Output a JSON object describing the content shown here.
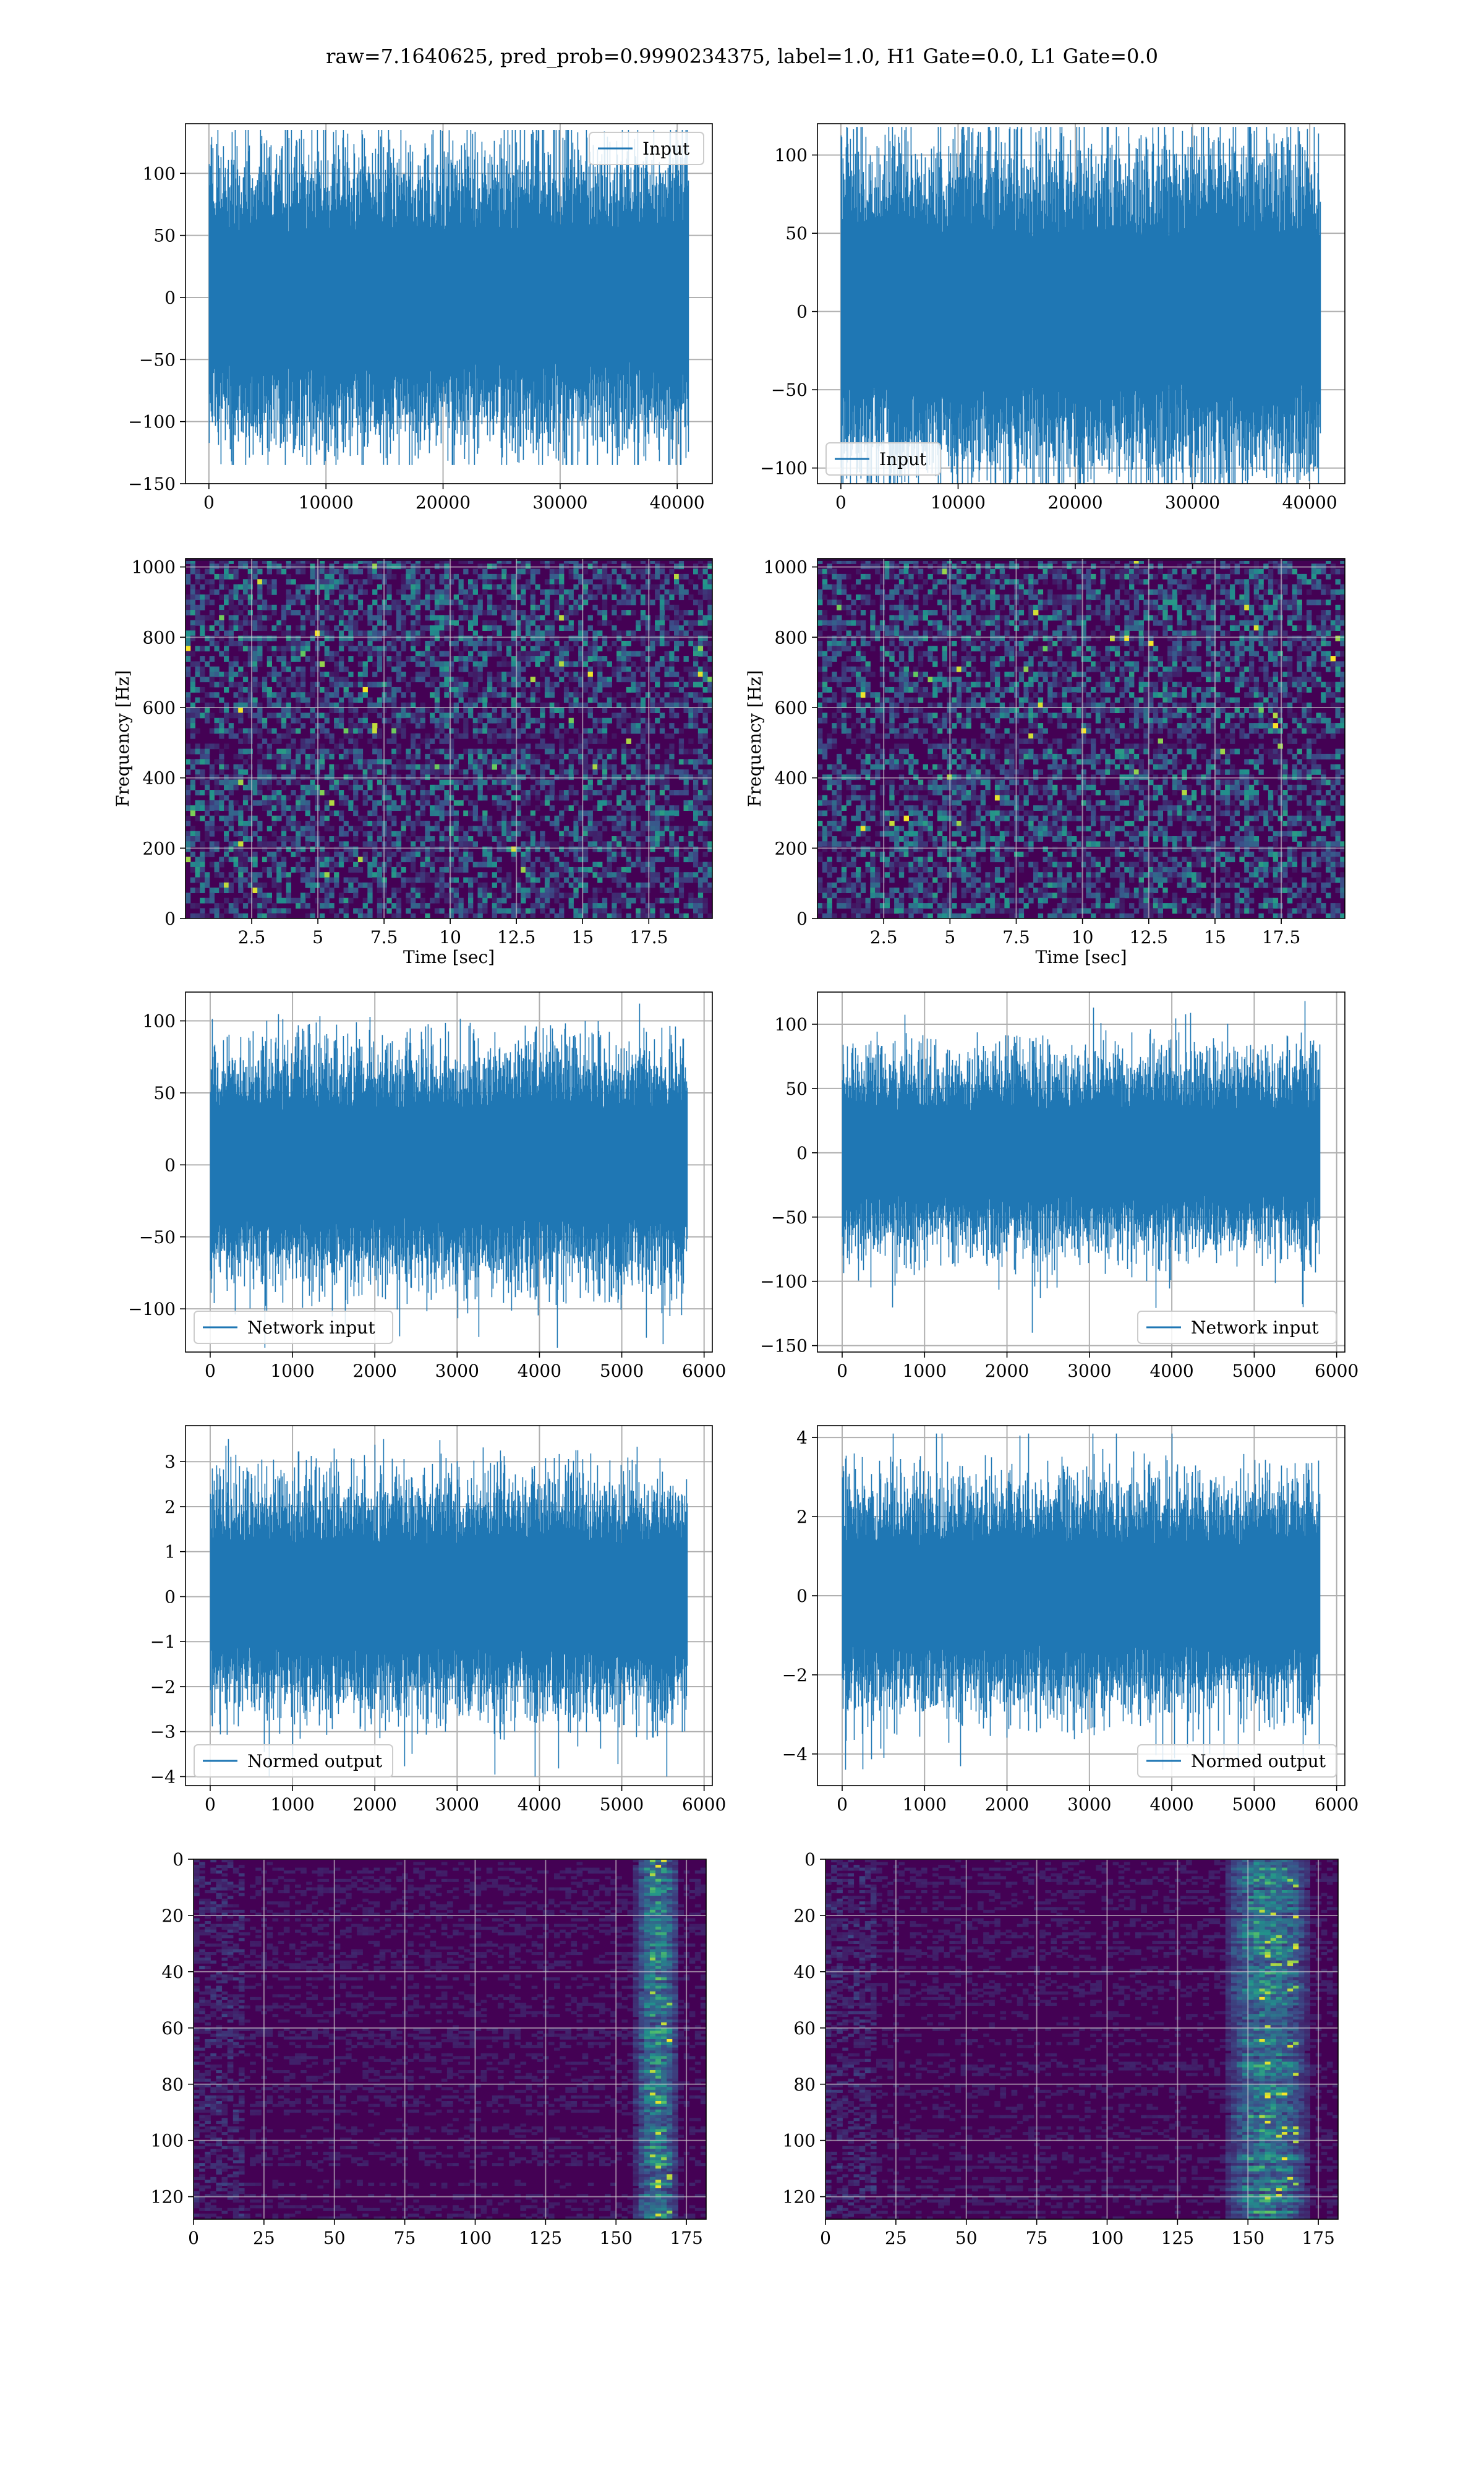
{
  "figure": {
    "title": "raw=7.1640625, pred_prob=0.9990234375, label=1.0, H1 Gate=0.0, L1 Gate=0.0"
  },
  "colors": {
    "line": "#1f77b4",
    "grid": "#b0b0b0",
    "spec_low": "#440154",
    "spec_high": "#fde725"
  },
  "chart_data": [
    {
      "id": "input-h1",
      "type": "line",
      "row": 0,
      "col": 0,
      "series": [
        {
          "name": "Input"
        }
      ],
      "legend": "upper right",
      "xlim": [
        -2000,
        43000
      ],
      "ylim": [
        -150,
        140
      ],
      "xticks": [
        0,
        10000,
        20000,
        30000,
        40000
      ],
      "yticks": [
        -150,
        -100,
        -50,
        0,
        50,
        100
      ],
      "signal": {
        "length": 40960,
        "sigma": 28,
        "max": 135,
        "min": -135
      },
      "xlabel": "",
      "ylabel": ""
    },
    {
      "id": "input-l1",
      "type": "line",
      "row": 0,
      "col": 1,
      "series": [
        {
          "name": "Input"
        }
      ],
      "legend": "lower left",
      "xlim": [
        -2000,
        43000
      ],
      "ylim": [
        -110,
        120
      ],
      "xticks": [
        0,
        10000,
        20000,
        30000,
        40000
      ],
      "yticks": [
        -100,
        -50,
        0,
        50,
        100
      ],
      "signal": {
        "length": 40960,
        "sigma": 25,
        "max": 118,
        "min": -122
      },
      "xlabel": "",
      "ylabel": ""
    },
    {
      "id": "spectrogram-h1",
      "type": "heatmap",
      "row": 1,
      "col": 0,
      "xlim": [
        0,
        19.9
      ],
      "ylim": [
        0,
        1024
      ],
      "xticks": [
        2.5,
        5.0,
        7.5,
        10.0,
        12.5,
        15.0,
        17.5
      ],
      "yticks": [
        0,
        200,
        400,
        600,
        800,
        1000
      ],
      "xlabel": "Time [sec]",
      "ylabel": "Frequency [Hz]"
    },
    {
      "id": "spectrogram-l1",
      "type": "heatmap",
      "row": 1,
      "col": 1,
      "xlim": [
        0,
        19.9
      ],
      "ylim": [
        0,
        1024
      ],
      "xticks": [
        2.5,
        5.0,
        7.5,
        10.0,
        12.5,
        15.0,
        17.5
      ],
      "yticks": [
        0,
        200,
        400,
        600,
        800,
        1000
      ],
      "xlabel": "Time [sec]",
      "ylabel": "Frequency [Hz]"
    },
    {
      "id": "network-input-h1",
      "type": "line",
      "row": 2,
      "col": 0,
      "series": [
        {
          "name": "Network input"
        }
      ],
      "legend": "lower left",
      "xlim": [
        -300,
        6100
      ],
      "ylim": [
        -130,
        120
      ],
      "xticks": [
        0,
        1000,
        2000,
        3000,
        4000,
        5000,
        6000
      ],
      "yticks": [
        -100,
        -50,
        0,
        50,
        100
      ],
      "signal": {
        "length": 5800,
        "sigma": 27,
        "max": 112,
        "min": -127
      },
      "xlabel": "",
      "ylabel": ""
    },
    {
      "id": "network-input-l1",
      "type": "line",
      "row": 2,
      "col": 1,
      "series": [
        {
          "name": "Network input"
        }
      ],
      "legend": "lower right",
      "xlim": [
        -300,
        6100
      ],
      "ylim": [
        -155,
        125
      ],
      "xticks": [
        0,
        1000,
        2000,
        3000,
        4000,
        5000,
        6000
      ],
      "yticks": [
        -150,
        -100,
        -50,
        0,
        50,
        100
      ],
      "signal": {
        "length": 5800,
        "sigma": 25,
        "max": 118,
        "min": -140
      },
      "xlabel": "",
      "ylabel": ""
    },
    {
      "id": "normed-output-h1",
      "type": "line",
      "row": 3,
      "col": 0,
      "series": [
        {
          "name": "Normed output"
        }
      ],
      "legend": "lower left",
      "xlim": [
        -300,
        6100
      ],
      "ylim": [
        -4.2,
        3.8
      ],
      "xticks": [
        0,
        1000,
        2000,
        3000,
        4000,
        5000,
        6000
      ],
      "yticks": [
        -4,
        -3,
        -2,
        -1,
        0,
        1,
        2,
        3
      ],
      "signal": {
        "length": 5800,
        "sigma": 0.85,
        "max": 3.5,
        "min": -4.0
      },
      "xlabel": "",
      "ylabel": ""
    },
    {
      "id": "normed-output-l1",
      "type": "line",
      "row": 3,
      "col": 1,
      "series": [
        {
          "name": "Normed output"
        }
      ],
      "legend": "lower right",
      "xlim": [
        -300,
        6100
      ],
      "ylim": [
        -4.8,
        4.3
      ],
      "xticks": [
        0,
        1000,
        2000,
        3000,
        4000,
        5000,
        6000
      ],
      "yticks": [
        -4,
        -2,
        0,
        2,
        4
      ],
      "signal": {
        "length": 5800,
        "sigma": 0.95,
        "max": 4.1,
        "min": -4.4
      },
      "xlabel": "",
      "ylabel": ""
    },
    {
      "id": "feature-map-h1",
      "type": "heatmap",
      "row": 4,
      "col": 0,
      "xlim": [
        0,
        182
      ],
      "ylim": [
        128,
        0
      ],
      "xticks": [
        0,
        25,
        50,
        75,
        100,
        125,
        150,
        175
      ],
      "yticks": [
        0,
        20,
        40,
        60,
        80,
        100,
        120
      ],
      "hot_columns": [
        155,
        172
      ],
      "xlabel": "",
      "ylabel": ""
    },
    {
      "id": "feature-map-l1",
      "type": "heatmap",
      "row": 4,
      "col": 1,
      "xlim": [
        0,
        182
      ],
      "ylim": [
        128,
        0
      ],
      "xticks": [
        0,
        25,
        50,
        75,
        100,
        125,
        150,
        175
      ],
      "yticks": [
        0,
        20,
        40,
        60,
        80,
        100,
        120
      ],
      "hot_columns": [
        140,
        172
      ],
      "xlabel": "",
      "ylabel": ""
    }
  ]
}
